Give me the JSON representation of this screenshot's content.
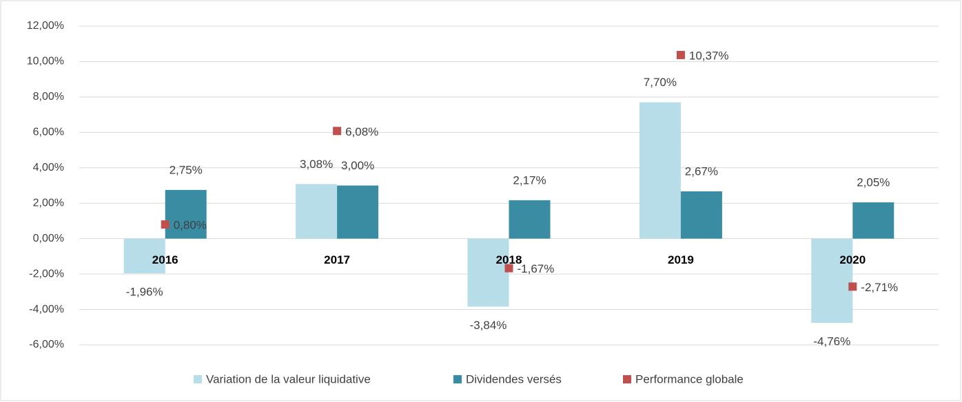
{
  "chart_data": {
    "type": "bar",
    "categories": [
      "2016",
      "2017",
      "2018",
      "2019",
      "2020"
    ],
    "series": [
      {
        "name": "Variation de la valeur liquidative",
        "color": "#b7dde8",
        "values": [
          -1.96,
          3.08,
          -3.84,
          7.7,
          -4.76
        ],
        "value_labels": [
          "-1,96%",
          "3,08%",
          "-3,84%",
          "7,70%",
          "-4,76%"
        ]
      },
      {
        "name": "Dividendes versés",
        "color": "#3a8ca3",
        "values": [
          2.75,
          3.0,
          2.17,
          2.67,
          2.05
        ],
        "value_labels": [
          "2,75%",
          "3,00%",
          "2,17%",
          "2,67%",
          "2,05%"
        ]
      },
      {
        "name": "Performance globale",
        "type": "scatter",
        "color": "#c0504d",
        "values": [
          0.8,
          6.08,
          -1.67,
          10.37,
          -2.71
        ],
        "value_labels": [
          "0,80%",
          "6,08%",
          "-1,67%",
          "10,37%",
          "-2,71%"
        ]
      }
    ],
    "ylim": [
      -6,
      12
    ],
    "yticks": [
      {
        "value": -6,
        "label": "-6,00%"
      },
      {
        "value": -4,
        "label": "-4,00%"
      },
      {
        "value": -2,
        "label": "-2,00%"
      },
      {
        "value": 0,
        "label": "0,00%"
      },
      {
        "value": 2,
        "label": "2,00%"
      },
      {
        "value": 4,
        "label": "4,00%"
      },
      {
        "value": 6,
        "label": "6,00%"
      },
      {
        "value": 8,
        "label": "8,00%"
      },
      {
        "value": 10,
        "label": "10,00%"
      },
      {
        "value": 12,
        "label": "12,00%"
      }
    ],
    "grid": true,
    "legend": "bottom"
  }
}
